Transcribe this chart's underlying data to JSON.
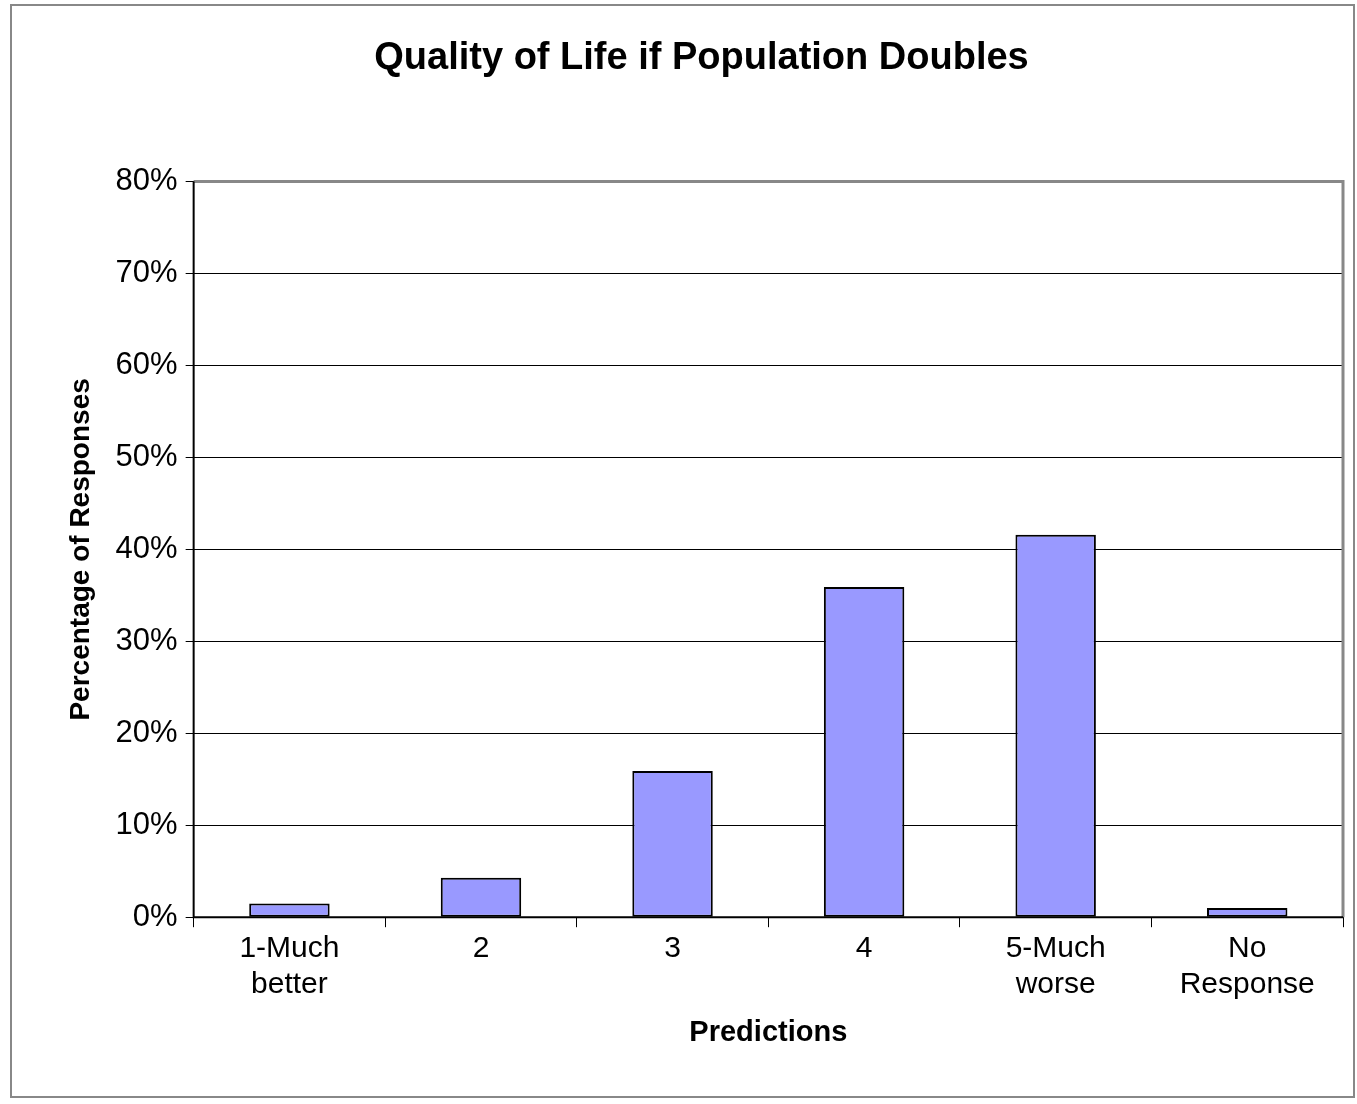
{
  "chart_data": {
    "type": "bar",
    "title": "Quality of Life if Population Doubles",
    "xlabel": "Predictions",
    "ylabel": "Percentage of Responses",
    "categories": [
      "1-Much better",
      "2",
      "3",
      "4",
      "5-Much worse",
      "No Response"
    ],
    "values": [
      1.5,
      4.3,
      15.9,
      35.9,
      41.6,
      1.0
    ],
    "color": "#9999ff",
    "ylim": [
      0,
      80
    ],
    "yticks": [
      {
        "value": 0,
        "label": "0%"
      },
      {
        "value": 10,
        "label": "10%"
      },
      {
        "value": 20,
        "label": "20%"
      },
      {
        "value": 30,
        "label": "30%"
      },
      {
        "value": 40,
        "label": "40%"
      },
      {
        "value": 50,
        "label": "50%"
      },
      {
        "value": 60,
        "label": "60%"
      },
      {
        "value": 70,
        "label": "70%"
      },
      {
        "value": 80,
        "label": "80%"
      }
    ],
    "grid": "y",
    "legend": false
  }
}
